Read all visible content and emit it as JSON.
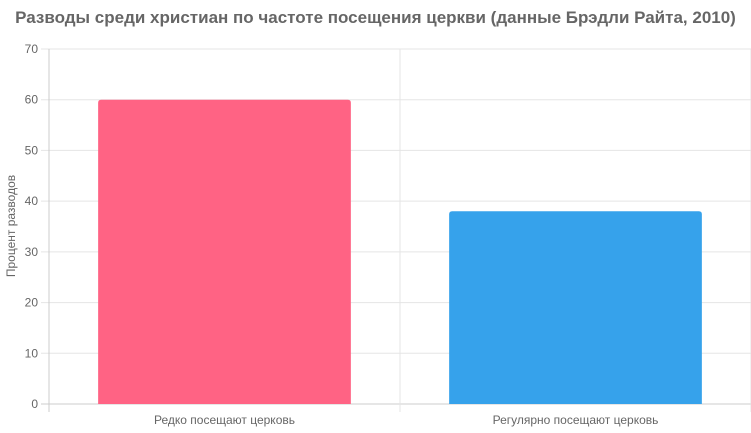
{
  "chart_data": {
    "type": "bar",
    "title": "Разводы среди христиан по частоте посещения церкви (данные Брэдли Райта, 2010)",
    "xlabel": "",
    "ylabel": "Процент разводов",
    "categories": [
      "Редко посещают церковь",
      "Регулярно посещают церковь"
    ],
    "values": [
      60,
      38
    ],
    "colors": [
      "#ff6384",
      "#36a2eb"
    ],
    "ylim": [
      0,
      70
    ],
    "yticks": [
      0,
      10,
      20,
      30,
      40,
      50,
      60,
      70
    ],
    "grid": true,
    "legend": "none"
  }
}
